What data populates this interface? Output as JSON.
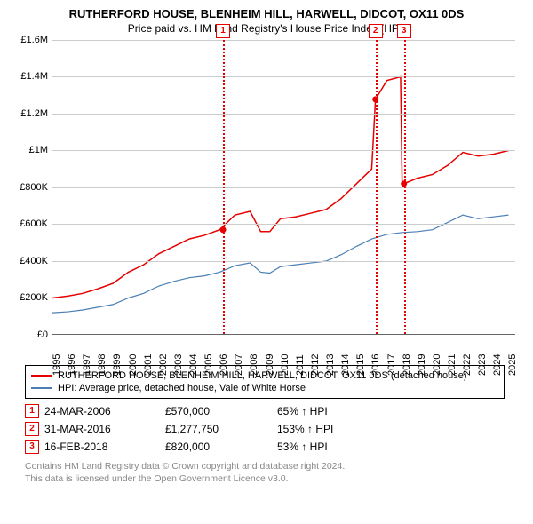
{
  "title": "RUTHERFORD HOUSE, BLENHEIM HILL, HARWELL, DIDCOT, OX11 0DS",
  "subtitle": "Price paid vs. HM Land Registry's House Price Index (HPI)",
  "chart": {
    "type": "line",
    "x_years": [
      1995,
      1996,
      1997,
      1998,
      1999,
      2000,
      2001,
      2002,
      2003,
      2004,
      2005,
      2006,
      2007,
      2008,
      2009,
      2010,
      2011,
      2012,
      2013,
      2014,
      2015,
      2016,
      2017,
      2018,
      2019,
      2020,
      2021,
      2022,
      2023,
      2024,
      "2025"
    ],
    "ylim": [
      0,
      1600000
    ],
    "ytick_step": 200000,
    "ytick_labels": [
      "£0",
      "£200K",
      "£400K",
      "£600K",
      "£800K",
      "£1M",
      "£1.2M",
      "£1.4M",
      "£1.6M"
    ],
    "grid_color": "#cccccc",
    "axis_color": "#666666",
    "series": [
      {
        "name": "RUTHERFORD HOUSE, BLENHEIM HILL, HARWELL, DIDCOT, OX11 0DS (detached house)",
        "color": "#e60000",
        "width": 1.5,
        "points": [
          [
            1995,
            200000
          ],
          [
            1996,
            210000
          ],
          [
            1997,
            225000
          ],
          [
            1998,
            250000
          ],
          [
            1999,
            280000
          ],
          [
            2000,
            340000
          ],
          [
            2001,
            380000
          ],
          [
            2002,
            440000
          ],
          [
            2003,
            480000
          ],
          [
            2004,
            520000
          ],
          [
            2005,
            540000
          ],
          [
            2006,
            570000
          ],
          [
            2007,
            650000
          ],
          [
            2008,
            670000
          ],
          [
            2008.7,
            560000
          ],
          [
            2009.3,
            560000
          ],
          [
            2010,
            630000
          ],
          [
            2011,
            640000
          ],
          [
            2012,
            660000
          ],
          [
            2013,
            680000
          ],
          [
            2014,
            740000
          ],
          [
            2015,
            820000
          ],
          [
            2016,
            900000
          ],
          [
            2016.25,
            1277750
          ],
          [
            2017,
            1380000
          ],
          [
            2017.9,
            1400000
          ],
          [
            2018,
            830000
          ],
          [
            2018.12,
            820000
          ],
          [
            2019,
            850000
          ],
          [
            2020,
            870000
          ],
          [
            2021,
            920000
          ],
          [
            2022,
            990000
          ],
          [
            2023,
            970000
          ],
          [
            2024,
            980000
          ],
          [
            2025,
            1000000
          ]
        ]
      },
      {
        "name": "HPI: Average price, detached house, Vale of White Horse",
        "color": "#4a7fb5",
        "width": 1.2,
        "points": [
          [
            1995,
            120000
          ],
          [
            1996,
            125000
          ],
          [
            1997,
            135000
          ],
          [
            1998,
            150000
          ],
          [
            1999,
            165000
          ],
          [
            2000,
            200000
          ],
          [
            2001,
            225000
          ],
          [
            2002,
            265000
          ],
          [
            2003,
            290000
          ],
          [
            2004,
            310000
          ],
          [
            2005,
            320000
          ],
          [
            2006,
            340000
          ],
          [
            2007,
            375000
          ],
          [
            2008,
            390000
          ],
          [
            2008.7,
            340000
          ],
          [
            2009.3,
            335000
          ],
          [
            2010,
            370000
          ],
          [
            2011,
            380000
          ],
          [
            2012,
            390000
          ],
          [
            2013,
            400000
          ],
          [
            2014,
            435000
          ],
          [
            2015,
            480000
          ],
          [
            2016,
            520000
          ],
          [
            2017,
            545000
          ],
          [
            2018,
            555000
          ],
          [
            2019,
            560000
          ],
          [
            2020,
            570000
          ],
          [
            2021,
            610000
          ],
          [
            2022,
            650000
          ],
          [
            2023,
            630000
          ],
          [
            2024,
            640000
          ],
          [
            2025,
            650000
          ]
        ]
      }
    ],
    "markers": [
      {
        "id": "1",
        "year": 2006.22,
        "box_top_offset": -18,
        "dot_value": 570000
      },
      {
        "id": "2",
        "year": 2016.25,
        "box_top_offset": -18,
        "dot_value": 1277750
      },
      {
        "id": "3",
        "year": 2018.12,
        "box_top_offset": -18,
        "dot_value": 820000
      }
    ],
    "marker_color": "#e60000",
    "background_color": "#ffffff"
  },
  "legend": [
    {
      "color": "#e60000",
      "label": "RUTHERFORD HOUSE, BLENHEIM HILL, HARWELL, DIDCOT, OX11 0DS (detached house)"
    },
    {
      "color": "#4a7fb5",
      "label": "HPI: Average price, detached house, Vale of White Horse"
    }
  ],
  "table": [
    {
      "id": "1",
      "date": "24-MAR-2006",
      "price": "£570,000",
      "delta": "65% ↑ HPI"
    },
    {
      "id": "2",
      "date": "31-MAR-2016",
      "price": "£1,277,750",
      "delta": "153% ↑ HPI"
    },
    {
      "id": "3",
      "date": "16-FEB-2018",
      "price": "£820,000",
      "delta": "53% ↑ HPI"
    }
  ],
  "footer_lines": [
    "Contains HM Land Registry data © Crown copyright and database right 2024.",
    "This data is licensed under the Open Government Licence v3.0."
  ]
}
